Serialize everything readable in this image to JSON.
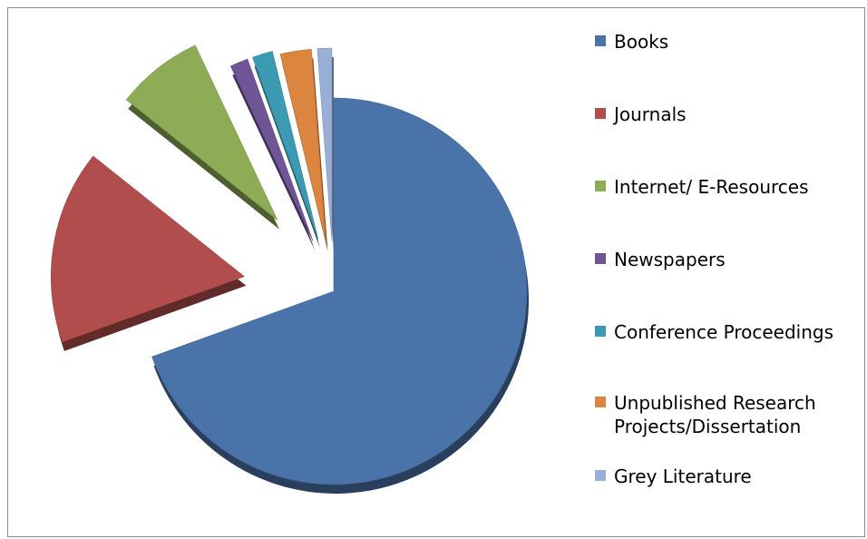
{
  "chart_data": {
    "type": "pie",
    "title": "",
    "categories": [
      "Books",
      "Journals",
      "Internet/ E-Resources",
      "Newspapers",
      "Conference Proceedings",
      "Unpublished Research\nProjects/Dissertation",
      "Grey Literature"
    ],
    "values": [
      69.5,
      16.2,
      7.3,
      1.5,
      1.7,
      2.6,
      1.2
    ],
    "colors": [
      "#4a73a9",
      "#b14e4d",
      "#8eac55",
      "#6f5596",
      "#3c9ab2",
      "#db8540",
      "#98afd7"
    ],
    "legend_position": "right",
    "style": "3d-exploded"
  }
}
